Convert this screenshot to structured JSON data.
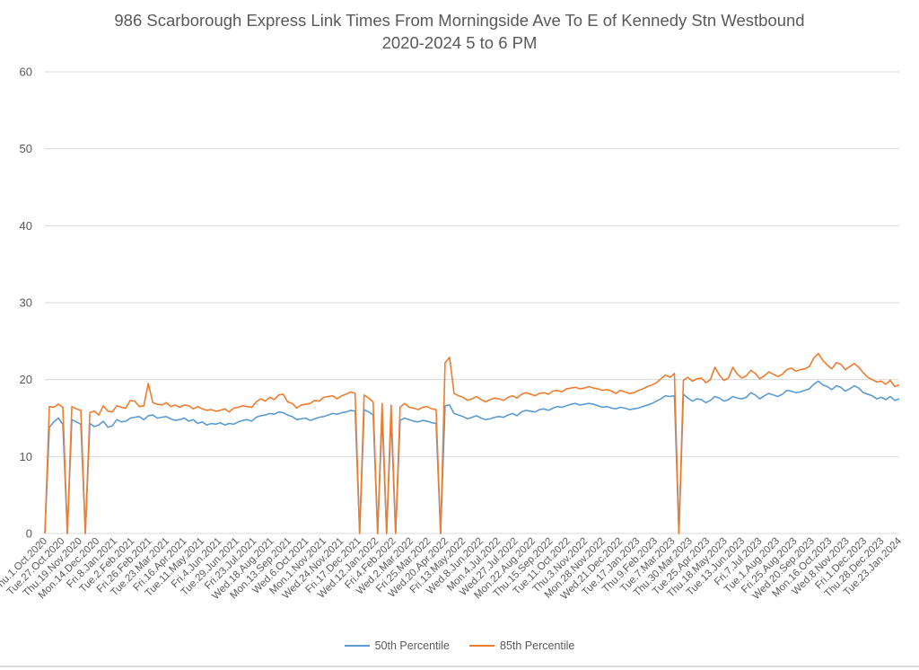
{
  "chart_data": {
    "type": "line",
    "title": "986 Scarborough Express Link Times From Morningside Ave To E of Kennedy Stn Westbound",
    "subtitle": "2020-2024 5 to 6 PM",
    "xlabel": "",
    "ylabel": "",
    "ylim": [
      0,
      60
    ],
    "yticks": [
      0,
      10,
      20,
      30,
      40,
      50,
      60
    ],
    "grid": true,
    "legend_position": "bottom",
    "x_tick_labels": [
      "Thu.1.Oct.2020",
      "Tue.27.Oct.2020",
      "Thu.19.Nov.2020",
      "Mon.14.Dec.2020",
      "Fri.8.Jan.2021",
      "Tue.2.Feb.2021",
      "Fri.26.Feb.2021",
      "Tue.23.Mar.2021",
      "Fri.16.Apr.2021",
      "Tue.11.May.2021",
      "Fri.4.Jun.2021",
      "Tue.29.Jun.2021",
      "Fri.23.Jul.2021",
      "Wed.18.Aug.2021",
      "Mon.13.Sep.2021",
      "Wed.6.Oct.2021",
      "Mon.1.Nov.2021",
      "Wed.24.Nov.2021",
      "Fri.17.Dec.2021",
      "Wed.12.Jan.2022",
      "Fri.4.Feb.2022",
      "Wed.2.Mar.2022",
      "Fri.25.Mar.2022",
      "Wed.20.Apr.2022",
      "Fri.13.May.2022",
      "Wed.8.Jun.2022",
      "Mon.4.Jul.2022",
      "Wed.27.Jul.2022",
      "Mon.22.Aug.2022",
      "Thu.15.Sep.2022",
      "Tue.11.Oct.2022",
      "Thu.3.Nov.2022",
      "Mon.28.Nov.2022",
      "Wed.21.Dec.2022",
      "Tue.17.Jan.2023",
      "Thu.9.Feb.2023",
      "Tue.7.Mar.2023",
      "Thu.30.Mar.2023",
      "Tue.25.Apr.2023",
      "Thu.18.May.2023",
      "Tue.13.Jun.2023",
      "Fri.7.Jul.2023",
      "Tue.1.Aug.2023",
      "Fri.25.Aug.2023",
      "Wed.20.Sep.2023",
      "Mon.16.Oct.2023",
      "Wed.8.Nov.2023",
      "Fri.1.Dec.2023",
      "Thu.28.Dec.2023",
      "Tue.23.Jan.2024"
    ],
    "series": [
      {
        "name": "50th Percentile",
        "color": "#5b9bd5",
        "values": [
          0,
          13.8,
          14.5,
          15,
          14.2,
          0,
          14.8,
          14.5,
          14.2,
          0,
          14.3,
          13.9,
          14.1,
          14.6,
          13.8,
          14,
          14.8,
          14.5,
          14.6,
          15,
          15.1,
          15.2,
          14.8,
          15.3,
          15.4,
          15,
          15.1,
          15.2,
          14.9,
          14.7,
          14.8,
          15,
          14.6,
          14.8,
          14.3,
          14.5,
          14.1,
          14.3,
          14.2,
          14.4,
          14.1,
          14.3,
          14.2,
          14.5,
          14.7,
          14.8,
          14.6,
          15.1,
          15.3,
          15.4,
          15.6,
          15.5,
          15.8,
          15.7,
          15.4,
          15.2,
          14.8,
          14.9,
          15,
          14.7,
          14.9,
          15.1,
          15.2,
          15.4,
          15.6,
          15.5,
          15.7,
          15.8,
          16,
          15.9,
          0,
          16.1,
          15.8,
          15.4,
          0,
          15.3,
          0,
          15.1,
          0,
          14.7,
          15,
          14.8,
          14.6,
          14.5,
          14.7,
          14.6,
          14.4,
          14.3,
          0,
          16.6,
          16.7,
          15.6,
          15.4,
          15.2,
          14.9,
          15.1,
          15.3,
          15,
          14.8,
          14.9,
          15.1,
          15.2,
          15.1,
          15.4,
          15.6,
          15.3,
          15.8,
          16,
          15.9,
          15.8,
          16.1,
          16.2,
          16,
          16.3,
          16.5,
          16.4,
          16.6,
          16.8,
          16.9,
          16.7,
          16.8,
          16.9,
          16.8,
          16.6,
          16.4,
          16.5,
          16.3,
          16.2,
          16.4,
          16.3,
          16.1,
          16.2,
          16.3,
          16.5,
          16.7,
          16.9,
          17.2,
          17.5,
          17.9,
          17.8,
          17.9,
          0,
          18.1,
          17.6,
          17.2,
          17.5,
          17.4,
          17,
          17.3,
          17.8,
          17.6,
          17.2,
          17.4,
          17.8,
          17.6,
          17.5,
          17.7,
          18.3,
          18,
          17.5,
          17.9,
          18.2,
          18,
          17.8,
          18.1,
          18.6,
          18.5,
          18.3,
          18.4,
          18.6,
          18.8,
          19.4,
          19.8,
          19.3,
          19.1,
          18.7,
          19.2,
          19,
          18.5,
          18.8,
          19.2,
          18.9,
          18.3,
          18.1,
          17.9,
          17.5,
          17.7,
          17.4,
          17.8,
          17.3,
          17.5
        ]
      },
      {
        "name": "85th Percentile",
        "color": "#ed7d31",
        "values": [
          0,
          16.5,
          16.4,
          16.8,
          16.4,
          0,
          16.5,
          16.2,
          16,
          0,
          15.7,
          15.9,
          15.4,
          16.6,
          15.9,
          15.8,
          16.6,
          16.4,
          16.3,
          17.3,
          17.2,
          16.5,
          16.6,
          19.5,
          17,
          16.8,
          16.7,
          17,
          16.5,
          16.7,
          16.4,
          16.7,
          16.6,
          16.2,
          16.5,
          16.2,
          16,
          16.1,
          15.9,
          16,
          16.2,
          15.8,
          16.3,
          16.4,
          16.6,
          16.5,
          16.4,
          17.1,
          17.5,
          17.2,
          17.7,
          17.4,
          18,
          18.1,
          17.1,
          16.9,
          16.3,
          16.7,
          16.8,
          16.9,
          17.3,
          17.2,
          17.7,
          17.8,
          17.9,
          17.5,
          17.9,
          18.1,
          18.4,
          18.2,
          0,
          18,
          17.6,
          17.1,
          0,
          16.9,
          0,
          16.7,
          0,
          16.4,
          16.9,
          16.4,
          16.3,
          16.1,
          16.4,
          16.5,
          16.2,
          16.1,
          0,
          22.2,
          22.9,
          18.2,
          17.9,
          17.7,
          17.3,
          17.5,
          17.8,
          17.4,
          17.1,
          17.4,
          17.6,
          17.5,
          17.3,
          17.7,
          17.9,
          17.6,
          18.1,
          18.3,
          18.1,
          17.9,
          18.2,
          18.3,
          18.1,
          18.5,
          18.6,
          18.4,
          18.8,
          18.9,
          19,
          18.8,
          18.9,
          19.1,
          18.9,
          18.8,
          18.6,
          18.7,
          18.5,
          18.2,
          18.6,
          18.4,
          18.2,
          18.3,
          18.6,
          18.8,
          19.1,
          19.3,
          19.6,
          20.1,
          20.6,
          20.3,
          20.8,
          0,
          19.9,
          20.3,
          19.8,
          20.1,
          20.2,
          19.6,
          20,
          21.6,
          20.6,
          19.9,
          20.2,
          21.6,
          20.7,
          20.2,
          20.5,
          21.2,
          20.8,
          20.1,
          20.5,
          21,
          20.7,
          20.4,
          20.7,
          21.3,
          21.5,
          21.1,
          21.3,
          21.4,
          21.7,
          22.8,
          23.4,
          22.5,
          21.9,
          21.4,
          22.2,
          22,
          21.3,
          21.7,
          22.1,
          21.6,
          20.9,
          20.3,
          20,
          19.7,
          19.8,
          19.4,
          19.9,
          19.1,
          19.3
        ]
      }
    ]
  }
}
